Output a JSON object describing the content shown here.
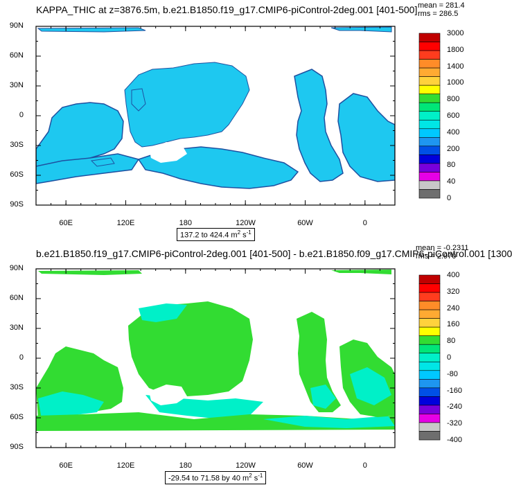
{
  "top_title": "KAPPA_THIC at z=3876.5m, b.e21.B1850.f19_g17.CMIP6-piControl-2deg.001 [401-500]",
  "top_mean": "mean = 281.4",
  "top_rms": "rms = 286.5",
  "top_range_prefix": "137.2 to 424.4 m",
  "bottom_title": "b.e21.B1850.f19_g17.CMIP6-piControl-2deg.001 [401-500] - b.e21.B1850.f09_g17.CMIP6-piControl.001 [1300",
  "bottom_mean": "mean = -0.2311",
  "bottom_rms": "rms = 2.970",
  "bottom_range_prefix": "-29.54 to 71.58 by 40 m",
  "units_exp": "2",
  "units_suffix": " s",
  "units_suffix_exp": "-1",
  "chart_data": [
    {
      "type": "heatmap",
      "title": "KAPPA_THIC at z=3876.5m, b.e21.B1850.f19_g17.CMIP6-piControl-2deg.001 [401-500]",
      "x_ticks": [
        "60E",
        "120E",
        "180",
        "120W",
        "60W",
        "0"
      ],
      "y_ticks": [
        "90N",
        "60N",
        "30N",
        "0",
        "30S",
        "60S",
        "90S"
      ],
      "colorbar_levels": [
        "3000",
        "1800",
        "1400",
        "1000",
        "800",
        "600",
        "400",
        "200",
        "80",
        "40",
        "0"
      ],
      "colorbar_colors": [
        "#c00000",
        "#ff0000",
        "#ff3c1e",
        "#ff8c28",
        "#ffaa32",
        "#ffd23c",
        "#ffff00",
        "#32dc32",
        "#00e678",
        "#00f0c8",
        "#00e6e6",
        "#00c8ff",
        "#1e96f0",
        "#0050e6",
        "#0000dc",
        "#7800dc",
        "#e600e6",
        "#c8c8c8",
        "#6e6e6e"
      ],
      "mean": 281.4,
      "rms": 286.5,
      "min": 137.2,
      "max": 424.4,
      "units": "m^2 s^-1"
    },
    {
      "type": "heatmap",
      "title": "b.e21.B1850.f19_g17.CMIP6-piControl-2deg.001 [401-500] - b.e21.B1850.f09_g17.CMIP6-piControl.001 [1300",
      "x_ticks": [
        "60E",
        "120E",
        "180",
        "120W",
        "60W",
        "0"
      ],
      "y_ticks": [
        "90N",
        "60N",
        "30N",
        "0",
        "30S",
        "60S",
        "90S"
      ],
      "colorbar_levels": [
        "400",
        "320",
        "240",
        "160",
        "80",
        "0",
        "-80",
        "-160",
        "-240",
        "-320",
        "-400"
      ],
      "colorbar_colors": [
        "#c00000",
        "#ff0000",
        "#ff3c1e",
        "#ff8c28",
        "#ffaa32",
        "#ffd23c",
        "#ffff00",
        "#32dc32",
        "#00e678",
        "#00f0c8",
        "#00e6e6",
        "#00c8ff",
        "#1e96f0",
        "#0050e6",
        "#0000dc",
        "#7800dc",
        "#e600e6",
        "#c8c8c8",
        "#6e6e6e"
      ],
      "mean": -0.2311,
      "rms": 2.97,
      "min": -29.54,
      "max": 71.58,
      "contour_interval": 40,
      "units": "m^2 s^-1"
    }
  ]
}
